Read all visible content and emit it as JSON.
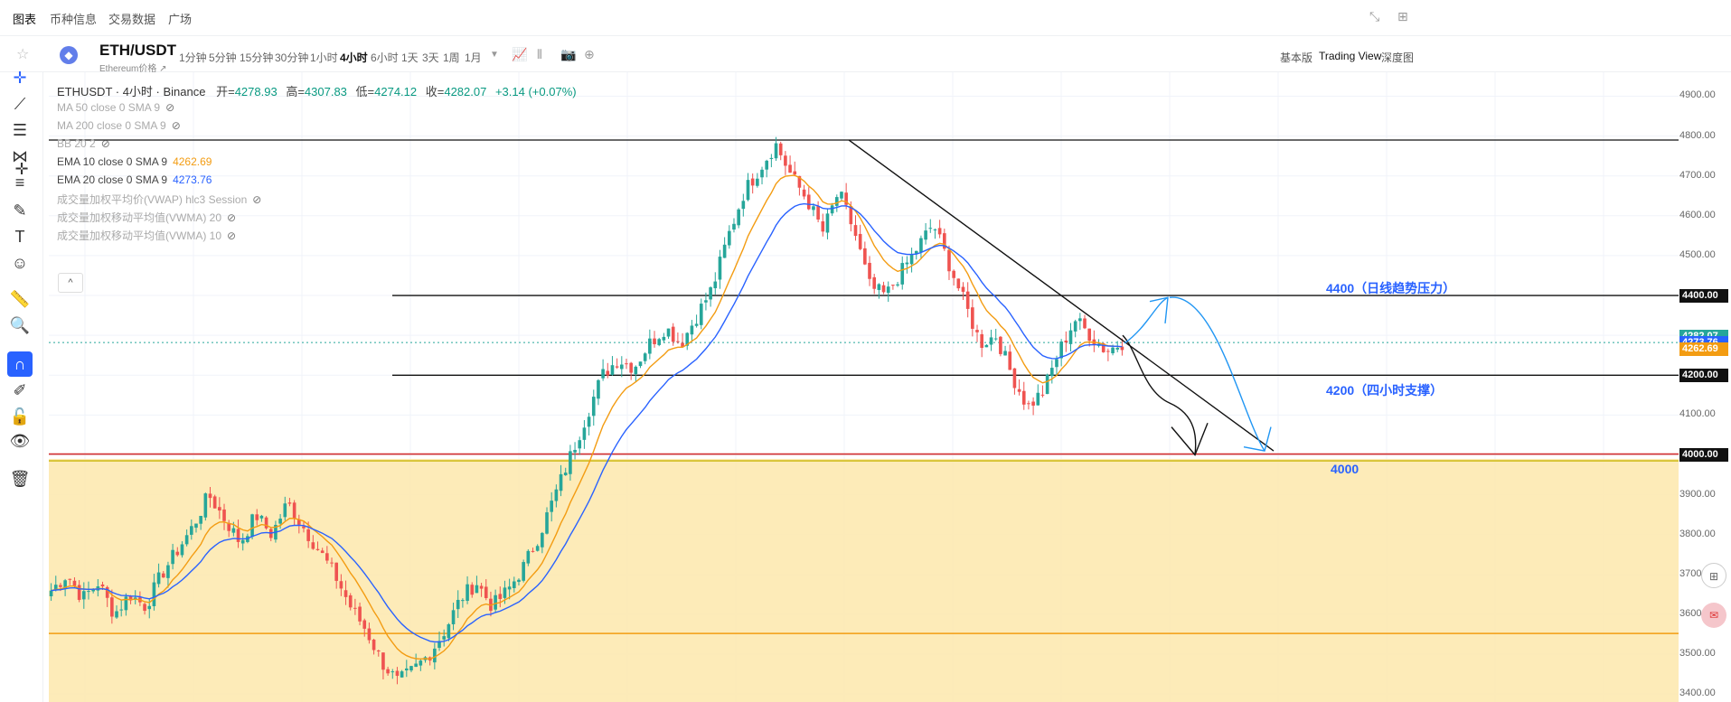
{
  "topnav": {
    "tabs": [
      "图表",
      "币种信息",
      "交易数据",
      "广场"
    ]
  },
  "header": {
    "coin_glyph": "◆",
    "symbol": "ETH/USDT",
    "subname": "Ethereum价格 ↗",
    "intervals": [
      "1分钟",
      "5分钟",
      "15分钟",
      "30分钟",
      "1小时",
      "4小时",
      "6小时",
      "1天",
      "3天",
      "1周",
      "1月"
    ],
    "active_interval": "4小时",
    "views": [
      "基本版",
      "Trading View",
      "深度图"
    ],
    "active_view": "Trading View"
  },
  "ohlc": {
    "title": "ETHUSDT · 4小时 · Binance",
    "open_label": "开=",
    "open": "4278.93",
    "high_label": "高=",
    "high": "4307.83",
    "low_label": "低=",
    "low": "4274.12",
    "close_label": "收=",
    "close": "4282.07",
    "change": "+3.14 (+0.07%)"
  },
  "indicators": [
    {
      "label": "MA 50 close 0 SMA 9",
      "value": "",
      "hidden": true,
      "color": "#aaaaaa"
    },
    {
      "label": "MA 200 close 0 SMA 9",
      "value": "",
      "hidden": true,
      "color": "#aaaaaa"
    },
    {
      "label": "BB 20 2",
      "value": "",
      "hidden": true,
      "color": "#aaaaaa"
    },
    {
      "label": "EMA 10 close 0 SMA 9",
      "value": "4262.69",
      "hidden": false,
      "color": "#f39c12"
    },
    {
      "label": "EMA 20 close 0 SMA 9",
      "value": "4273.76",
      "hidden": false,
      "color": "#2962ff"
    },
    {
      "label": "成交量加权平均价(VWAP) hlc3 Session",
      "value": "",
      "hidden": true,
      "color": "#aaaaaa"
    },
    {
      "label": "成交量加权移动平均值(VWMA) 20",
      "value": "",
      "hidden": true,
      "color": "#aaaaaa"
    },
    {
      "label": "成交量加权移动平均值(VWMA) 10",
      "value": "",
      "hidden": true,
      "color": "#aaaaaa"
    }
  ],
  "collapse_label": "^",
  "price_axis": {
    "ticks": [
      "4900.00",
      "4800.00",
      "4700.00",
      "4600.00",
      "4500.00",
      "4400.00",
      "4300.00",
      "4200.00",
      "4100.00",
      "4000.00",
      "3900.00",
      "3800.00",
      "3700.00",
      "3600.00",
      "3500.00",
      "3400.00"
    ],
    "tags": [
      {
        "label": "4400.00",
        "color": "#111111"
      },
      {
        "label": "4282.07",
        "color": "#26a69a"
      },
      {
        "label": "4273.76",
        "color": "#2962ff"
      },
      {
        "label": "4262.69",
        "color": "#f39c12"
      },
      {
        "label": "4200.00",
        "color": "#111111"
      },
      {
        "label": "4000.00",
        "color": "#111111"
      }
    ]
  },
  "annotations": {
    "resistance": "4400（日线趋势压力）",
    "support": "4200（四小时支撑）",
    "level": "4000"
  },
  "chart_data": {
    "type": "candlestick",
    "ylim": [
      3380,
      4960
    ],
    "y_ticks": [
      3400,
      3500,
      3600,
      3700,
      3800,
      3900,
      4000,
      4100,
      4200,
      4300,
      4400,
      4500,
      4600,
      4700,
      4800,
      4900
    ],
    "colors": {
      "up": "#26a69a",
      "down": "#ef5350",
      "ema10": "#f39c12",
      "ema20": "#2962ff"
    },
    "horizontal_lines": [
      4790,
      4400,
      4200,
      4002,
      3552
    ],
    "close_path": [
      3660,
      3700,
      3640,
      3680,
      3600,
      3650,
      3620,
      3700,
      3760,
      3820,
      3900,
      3840,
      3780,
      3850,
      3800,
      3880,
      3820,
      3760,
      3700,
      3620,
      3560,
      3480,
      3430,
      3460,
      3500,
      3560,
      3640,
      3680,
      3620,
      3660,
      3720,
      3800,
      3900,
      4000,
      4100,
      4200,
      4240,
      4220,
      4280,
      4320,
      4280,
      4350,
      4420,
      4550,
      4660,
      4720,
      4780,
      4700,
      4640,
      4560,
      4660,
      4560,
      4420,
      4400,
      4460,
      4520,
      4580,
      4480,
      4380,
      4280,
      4300,
      4200,
      4120,
      4160,
      4260,
      4340,
      4300,
      4260,
      4282
    ]
  }
}
